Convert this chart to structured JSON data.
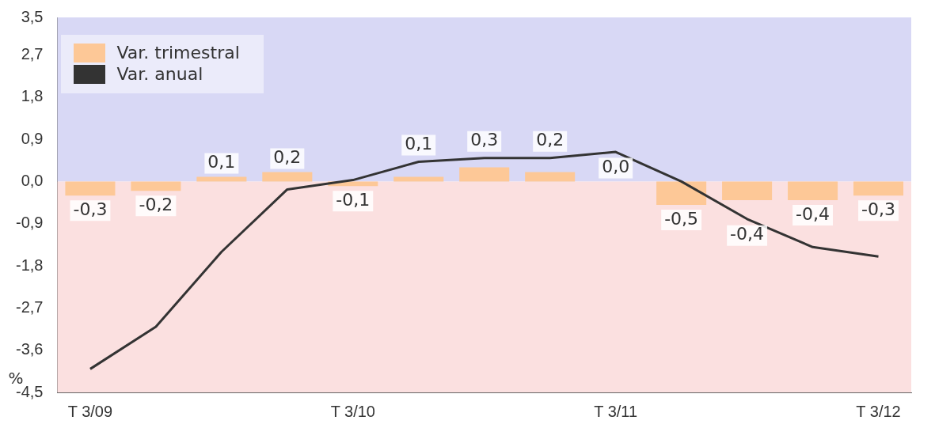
{
  "chart_data": {
    "type": "bar",
    "categories": [
      "T 3/09",
      null,
      null,
      null,
      "T 3/10",
      null,
      null,
      null,
      "T 3/11",
      null,
      null,
      null,
      "T 3/12"
    ],
    "series": [
      {
        "name": "Var. trimestral",
        "color": "#fdc897",
        "values": [
          -0.3,
          -0.2,
          0.1,
          0.2,
          -0.1,
          0.1,
          0.3,
          0.2,
          0.0,
          -0.5,
          -0.4,
          -0.4,
          -0.3
        ],
        "value_labels": [
          "-0,3",
          "-0,2",
          "0,1",
          "0,2",
          "-0,1",
          "0,1",
          "0,3",
          "0,2",
          "0,0",
          "-0,5",
          "-0,4",
          "-0,4",
          "-0,3"
        ]
      },
      {
        "name": "Var. anual",
        "type": "line",
        "color": "#333333",
        "values": [
          -4.0,
          -3.1,
          -1.5,
          -0.17,
          0.03,
          0.42,
          0.5,
          0.5,
          0.63,
          0.0,
          -0.8,
          -1.4,
          -1.6
        ]
      }
    ],
    "ylim": [
      -4.5,
      3.5
    ],
    "yticks": [
      {
        "value": 3.5,
        "label": "3,5"
      },
      {
        "value": 2.7,
        "label": "2,7"
      },
      {
        "value": 1.8,
        "label": "1,8"
      },
      {
        "value": 0.9,
        "label": "0,9"
      },
      {
        "value": 0,
        "label": "0,0"
      },
      {
        "value": -0.9,
        "label": "-0,9"
      },
      {
        "value": -1.8,
        "label": "-1,8"
      },
      {
        "value": -2.7,
        "label": "-2,7"
      },
      {
        "value": -3.6,
        "label": "-3,6"
      },
      {
        "value": -4.5,
        "label": "-4,5"
      }
    ],
    "bands": [
      {
        "axis": "y",
        "from": 0,
        "to": 3.5,
        "color": "#d8d8f5"
      },
      {
        "axis": "y",
        "from": -4.5,
        "to": 0,
        "color": "#fbe0e0"
      }
    ],
    "annotations": [
      "%"
    ],
    "legend": "top left",
    "grid": false,
    "marker": "none"
  }
}
